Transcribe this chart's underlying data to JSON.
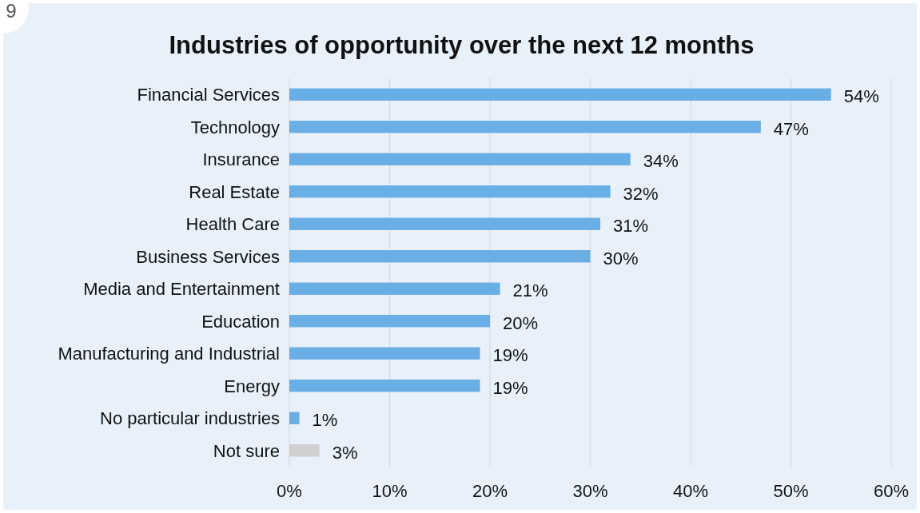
{
  "chart_data": {
    "type": "bar",
    "orientation": "horizontal",
    "title": "Industries of opportunity over the next 12 months",
    "categories": [
      "Financial Services",
      "Technology",
      "Insurance",
      "Real Estate",
      "Health Care",
      "Business Services",
      "Media and Entertainment",
      "Education",
      "Manufacturing and Industrial",
      "Energy",
      "No particular industries",
      "Not sure"
    ],
    "values": [
      54,
      47,
      34,
      32,
      31,
      30,
      21,
      20,
      19,
      19,
      1,
      3
    ],
    "colors": [
      "#6aaee6",
      "#6aaee6",
      "#6aaee6",
      "#6aaee6",
      "#6aaee6",
      "#6aaee6",
      "#6aaee6",
      "#6aaee6",
      "#6aaee6",
      "#6aaee6",
      "#6aaee6",
      "#d0d0d0"
    ],
    "value_labels": [
      "54%",
      "47%",
      "34%",
      "32%",
      "31%",
      "30%",
      "21%",
      "20%",
      "19%",
      "19%",
      "1%",
      "3%"
    ],
    "xlim": [
      0,
      60
    ],
    "xticks": [
      {
        "value": 0,
        "label": "0%"
      },
      {
        "value": 10,
        "label": "10%"
      },
      {
        "value": 20,
        "label": "20%"
      },
      {
        "value": 30,
        "label": "30%"
      },
      {
        "value": 40,
        "label": "40%"
      },
      {
        "value": 50,
        "label": "50%"
      },
      {
        "value": 60,
        "label": "60%"
      }
    ],
    "grid": "x",
    "annotations": [
      "9"
    ]
  }
}
